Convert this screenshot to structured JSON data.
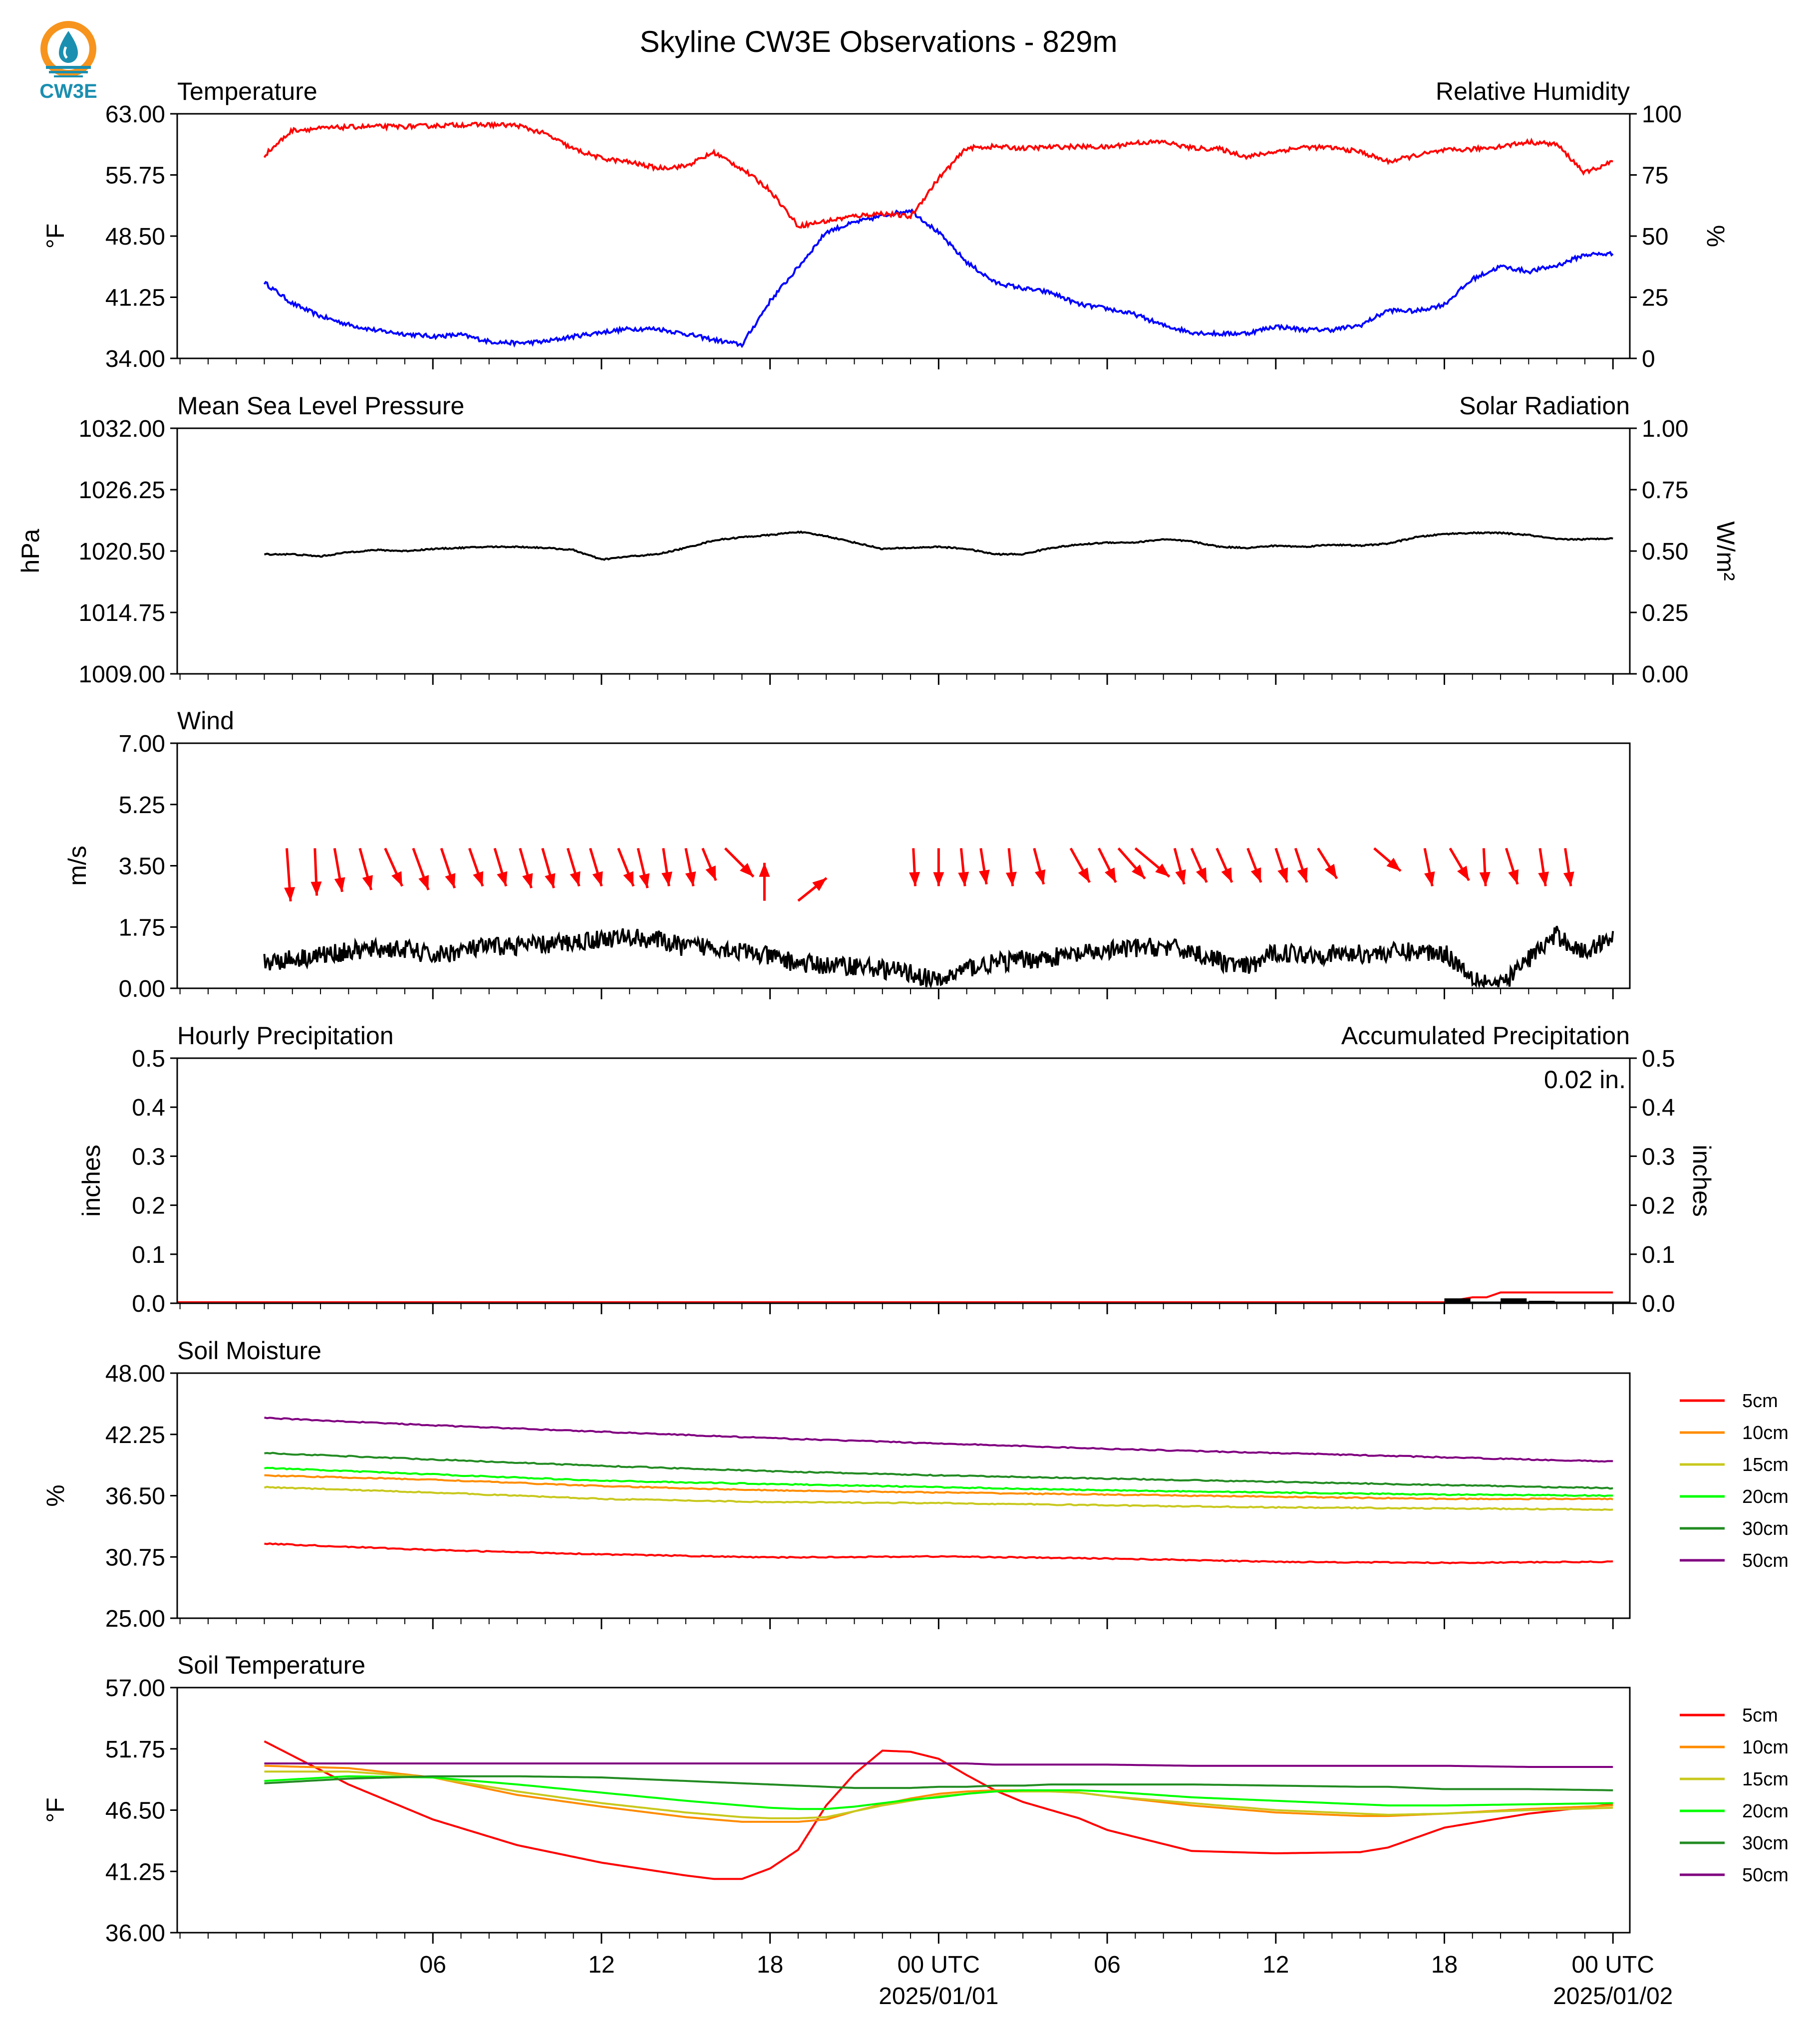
{
  "title": "Skyline CW3E Observations - 829m",
  "logo": {
    "text": "CW3E",
    "colors": {
      "orange": "#f7941d",
      "teal": "#1b8fb0"
    }
  },
  "x_axis": {
    "tick_labels": [
      "06",
      "12",
      "18",
      "00 UTC",
      "06",
      "12",
      "18",
      "00 UTC"
    ],
    "date_labels": [
      {
        "after_tick": 3,
        "text": "2025/01/01"
      },
      {
        "after_tick": 7,
        "text": "2025/01/02"
      }
    ]
  },
  "colors": {
    "temperature": "#0000ff",
    "humidity": "#ff0000",
    "pressure": "#000000",
    "solar": "#008000",
    "wind_speed": "#000000",
    "wind_arrow": "#ff0000",
    "accumulated": "#ff0000",
    "hourly": "#000000",
    "5cm": "#ff0000",
    "10cm": "#ff8c00",
    "15cm": "#c8c81e",
    "20cm": "#00ff00",
    "30cm": "#228b22",
    "50cm": "#800080"
  },
  "chart_data": [
    {
      "id": "temp_rh",
      "type": "line",
      "title_left": "Temperature",
      "title_right": "Relative Humidity",
      "ylabel": "°F",
      "ylabel_right": "%",
      "ylim": [
        34,
        63
      ],
      "yticks": [
        "63.00",
        "55.75",
        "48.50",
        "41.25",
        "34.00"
      ],
      "ylim_right": [
        0,
        100
      ],
      "yticks_right": [
        "100",
        "75",
        "50",
        "25",
        "0"
      ],
      "hours": [
        0,
        1,
        2,
        3,
        4,
        5,
        6,
        7,
        8,
        9,
        10,
        11,
        12,
        13,
        14,
        15,
        16,
        17,
        18,
        19,
        20,
        21,
        22,
        23,
        24,
        25,
        26,
        27,
        28,
        29,
        30,
        31,
        32,
        33,
        34,
        35,
        36,
        37,
        38,
        39,
        40,
        41,
        42,
        43,
        44,
        45,
        46,
        47,
        48
      ],
      "series": [
        {
          "name": "Temperature",
          "axis": "left",
          "values": [
            43.0,
            40.5,
            39.0,
            38.0,
            37.3,
            36.9,
            36.6,
            36.8,
            36.0,
            35.8,
            36.0,
            36.6,
            37.1,
            37.5,
            37.5,
            36.9,
            36.2,
            35.6,
            40.8,
            44.8,
            49.0,
            50.1,
            50.9,
            51.6,
            48.9,
            45.4,
            43.0,
            42.3,
            41.8,
            40.4,
            39.9,
            39.2,
            37.9,
            37.1,
            36.9,
            37.0,
            37.8,
            37.4,
            37.4,
            37.9,
            39.7,
            39.6,
            40.4,
            43.4,
            44.9,
            44.3,
            45.0,
            46.3,
            46.4
          ]
        },
        {
          "name": "Relative Humidity",
          "axis": "right",
          "values": [
            83.0,
            93.3,
            94.0,
            94.6,
            94.8,
            94.8,
            95.1,
            95.5,
            95.5,
            95.3,
            91.8,
            85.6,
            81.8,
            80.2,
            77.8,
            78.6,
            84.2,
            77.5,
            68.8,
            54.1,
            56.1,
            58.2,
            59.3,
            57.9,
            73.6,
            86.0,
            86.6,
            85.9,
            86.4,
            86.6,
            86.3,
            88.2,
            88.5,
            86.0,
            85.6,
            82.4,
            84.6,
            86.4,
            86.1,
            84.5,
            80.4,
            83.0,
            85.0,
            85.5,
            86.7,
            88.5,
            87.5,
            75.8,
            80.5
          ]
        }
      ]
    },
    {
      "id": "pressure",
      "type": "line",
      "title_left": "Mean Sea Level Pressure",
      "title_right": "Solar Radiation",
      "ylabel": "hPa",
      "ylabel_right": "W/m²",
      "ylim": [
        1009,
        1032
      ],
      "yticks": [
        "1032.00",
        "1026.25",
        "1020.50",
        "1014.75",
        "1009.00"
      ],
      "ylim_right": [
        0,
        1
      ],
      "yticks_right": [
        "1.00",
        "0.75",
        "0.50",
        "0.25",
        "0.00"
      ],
      "hours": [
        0,
        1,
        2,
        3,
        4,
        5,
        6,
        7,
        8,
        9,
        10,
        11,
        12,
        13,
        14,
        15,
        16,
        17,
        18,
        19,
        20,
        21,
        22,
        23,
        24,
        25,
        26,
        27,
        28,
        29,
        30,
        31,
        32,
        33,
        34,
        35,
        36,
        37,
        38,
        39,
        40,
        41,
        42,
        43,
        44,
        45,
        46,
        47,
        48
      ],
      "series": [
        {
          "name": "Mean Sea Level Pressure",
          "axis": "left",
          "values": [
            1020.2,
            1020.2,
            1020.0,
            1020.4,
            1020.6,
            1020.5,
            1020.7,
            1020.8,
            1020.9,
            1020.9,
            1020.8,
            1020.6,
            1019.7,
            1020.0,
            1020.2,
            1020.8,
            1021.5,
            1021.8,
            1022.0,
            1022.3,
            1021.9,
            1021.3,
            1020.7,
            1020.8,
            1020.9,
            1020.7,
            1020.2,
            1020.2,
            1020.8,
            1021.1,
            1021.3,
            1021.3,
            1021.6,
            1021.4,
            1020.9,
            1020.8,
            1021.0,
            1020.9,
            1021.1,
            1021.0,
            1021.2,
            1021.8,
            1022.1,
            1022.2,
            1022.2,
            1022.0,
            1021.6,
            1021.6,
            1021.7
          ]
        },
        {
          "name": "Solar Radiation",
          "axis": "right",
          "values": []
        }
      ]
    },
    {
      "id": "wind",
      "type": "line",
      "title_left": "Wind",
      "ylabel": "m/s",
      "ylim": [
        0,
        7
      ],
      "yticks": [
        "7.00",
        "5.25",
        "3.50",
        "1.75",
        "0.00"
      ],
      "hours": [
        0,
        1,
        2,
        3,
        4,
        5,
        6,
        7,
        8,
        9,
        10,
        11,
        12,
        13,
        14,
        15,
        16,
        17,
        18,
        19,
        20,
        21,
        22,
        23,
        24,
        25,
        26,
        27,
        28,
        29,
        30,
        31,
        32,
        33,
        34,
        35,
        36,
        37,
        38,
        39,
        40,
        41,
        42,
        43,
        44,
        45,
        46,
        47,
        48
      ],
      "series": [
        {
          "name": "Wind speed",
          "values": [
            0.75,
            0.84,
            0.95,
            1.05,
            1.12,
            1.12,
            0.92,
            1.08,
            1.18,
            1.22,
            1.24,
            1.32,
            1.41,
            1.46,
            1.38,
            1.17,
            1.21,
            1.05,
            0.9,
            0.72,
            0.65,
            0.65,
            0.55,
            0.44,
            0.18,
            0.58,
            0.72,
            0.82,
            0.88,
            0.96,
            1.06,
            1.15,
            1.18,
            1.05,
            0.78,
            0.58,
            1.03,
            0.98,
            0.98,
            0.98,
            1.02,
            1.05,
            1.02,
            0.35,
            0.07,
            0.85,
            1.52,
            1.0,
            1.55
          ]
        }
      ],
      "arrows": [
        {
          "hour": 0.8,
          "u": 0.2,
          "v": -2.8
        },
        {
          "hour": 1.8,
          "u": 0.1,
          "v": -2.5
        },
        {
          "hour": 2.5,
          "u": 0.4,
          "v": -2.3
        },
        {
          "hour": 3.4,
          "u": 0.6,
          "v": -2.2
        },
        {
          "hour": 4.3,
          "u": 0.9,
          "v": -2.0
        },
        {
          "hour": 5.3,
          "u": 0.8,
          "v": -2.2
        },
        {
          "hour": 6.3,
          "u": 0.7,
          "v": -2.1
        },
        {
          "hour": 7.3,
          "u": 0.7,
          "v": -2.0
        },
        {
          "hour": 8.2,
          "u": 0.6,
          "v": -2.0
        },
        {
          "hour": 9.1,
          "u": 0.6,
          "v": -2.1
        },
        {
          "hour": 9.9,
          "u": 0.6,
          "v": -2.1
        },
        {
          "hour": 10.8,
          "u": 0.6,
          "v": -2.0
        },
        {
          "hour": 11.6,
          "u": 0.6,
          "v": -2.0
        },
        {
          "hour": 12.6,
          "u": 0.8,
          "v": -2.0
        },
        {
          "hour": 13.3,
          "u": 0.5,
          "v": -2.1
        },
        {
          "hour": 14.2,
          "u": 0.3,
          "v": -2.0
        },
        {
          "hour": 15.0,
          "u": 0.4,
          "v": -2.0
        },
        {
          "hour": 15.6,
          "u": 0.7,
          "v": -1.7
        },
        {
          "hour": 16.4,
          "u": 1.5,
          "v": -1.5
        },
        {
          "hour": 17.8,
          "u": 0.0,
          "v": 2.0
        },
        {
          "hour": 19.0,
          "u": 1.5,
          "v": 1.2
        },
        {
          "hour": 23.1,
          "u": 0.1,
          "v": -2.0
        },
        {
          "hour": 24.0,
          "u": 0.0,
          "v": -2.0
        },
        {
          "hour": 24.8,
          "u": 0.2,
          "v": -2.0
        },
        {
          "hour": 25.5,
          "u": 0.3,
          "v": -1.9
        },
        {
          "hour": 26.5,
          "u": 0.2,
          "v": -2.0
        },
        {
          "hour": 27.4,
          "u": 0.5,
          "v": -1.9
        },
        {
          "hour": 28.7,
          "u": 1.0,
          "v": -1.8
        },
        {
          "hour": 29.7,
          "u": 0.9,
          "v": -1.8
        },
        {
          "hour": 30.4,
          "u": 1.4,
          "v": -1.6
        },
        {
          "hour": 31.0,
          "u": 1.8,
          "v": -1.5
        },
        {
          "hour": 32.4,
          "u": 0.5,
          "v": -1.9
        },
        {
          "hour": 33.0,
          "u": 0.8,
          "v": -1.8
        },
        {
          "hour": 33.9,
          "u": 0.8,
          "v": -1.8
        },
        {
          "hour": 35.0,
          "u": 0.7,
          "v": -1.8
        },
        {
          "hour": 36.0,
          "u": 0.6,
          "v": -1.8
        },
        {
          "hour": 36.7,
          "u": 0.6,
          "v": -1.8
        },
        {
          "hour": 37.5,
          "u": 1.0,
          "v": -1.6
        },
        {
          "hour": 39.5,
          "u": 1.4,
          "v": -1.2
        },
        {
          "hour": 41.3,
          "u": 0.4,
          "v": -2.0
        },
        {
          "hour": 42.2,
          "u": 1.0,
          "v": -1.7
        },
        {
          "hour": 43.4,
          "u": 0.1,
          "v": -2.0
        },
        {
          "hour": 44.2,
          "u": 0.6,
          "v": -1.9
        },
        {
          "hour": 45.4,
          "u": 0.3,
          "v": -2.0
        },
        {
          "hour": 46.3,
          "u": 0.3,
          "v": -2.0
        }
      ]
    },
    {
      "id": "precip",
      "type": "line",
      "title_left": "Hourly Precipitation",
      "title_right": "Accumulated Precipitation",
      "annotation": "0.02 in.",
      "ylabel": "inches",
      "ylabel_right": "inches",
      "ylim": [
        0,
        0.5
      ],
      "yticks": [
        "0.5",
        "0.4",
        "0.3",
        "0.2",
        "0.1",
        "0.0"
      ],
      "ylim_right": [
        0,
        0.5
      ],
      "yticks_right": [
        "0.5",
        "0.4",
        "0.3",
        "0.2",
        "0.1",
        "0.0"
      ],
      "series": [
        {
          "name": "Accumulated Precipitation",
          "axis": "right",
          "hours": [
            0,
            42.0,
            43.0,
            43.5,
            44.0,
            44.5,
            48
          ],
          "values": [
            0.0,
            0.0,
            0.01,
            0.01,
            0.02,
            0.02,
            0.02
          ]
        },
        {
          "name": "Hourly Precipitation",
          "axis": "left",
          "hours": [
            42.0,
            44.0,
            45.0
          ],
          "values": [
            0.01,
            0.01,
            0.005
          ]
        }
      ]
    },
    {
      "id": "soil_moisture",
      "type": "line",
      "title_left": "Soil Moisture",
      "ylabel": "%",
      "ylim": [
        25,
        48
      ],
      "yticks": [
        "48.00",
        "42.25",
        "36.50",
        "30.75",
        "25.00"
      ],
      "hours": [
        0,
        6,
        12,
        18,
        24,
        30,
        36,
        42,
        48
      ],
      "legend": [
        "5cm",
        "10cm",
        "15cm",
        "20cm",
        "30cm",
        "50cm"
      ],
      "series": [
        {
          "name": "5cm",
          "values": [
            32.0,
            31.4,
            31.0,
            30.7,
            30.8,
            30.6,
            30.3,
            30.2,
            30.3
          ]
        },
        {
          "name": "10cm",
          "values": [
            38.4,
            38.0,
            37.4,
            37.0,
            36.8,
            36.6,
            36.4,
            36.2,
            36.2
          ]
        },
        {
          "name": "15cm",
          "values": [
            37.3,
            36.8,
            36.2,
            35.9,
            35.8,
            35.6,
            35.4,
            35.3,
            35.2
          ]
        },
        {
          "name": "20cm",
          "values": [
            39.1,
            38.5,
            37.9,
            37.6,
            37.3,
            37.0,
            36.8,
            36.6,
            36.5
          ]
        },
        {
          "name": "30cm",
          "values": [
            40.5,
            39.9,
            39.3,
            38.8,
            38.4,
            38.1,
            37.8,
            37.5,
            37.2
          ]
        },
        {
          "name": "50cm",
          "values": [
            43.8,
            43.1,
            42.5,
            41.9,
            41.4,
            40.9,
            40.5,
            40.1,
            39.7
          ]
        }
      ]
    },
    {
      "id": "soil_temperature",
      "type": "line",
      "title_left": "Soil Temperature",
      "ylabel": "°F",
      "ylim": [
        36,
        57
      ],
      "yticks": [
        "57.00",
        "51.75",
        "46.50",
        "41.25",
        "36.00"
      ],
      "hours": [
        0,
        3,
        6,
        9,
        12,
        15,
        16,
        17,
        18,
        19,
        20,
        21,
        22,
        23,
        24,
        25,
        26,
        27,
        28,
        29,
        30,
        33,
        36,
        39,
        40,
        42,
        45,
        48
      ],
      "legend": [
        "5cm",
        "10cm",
        "15cm",
        "20cm",
        "30cm",
        "50cm"
      ],
      "series": [
        {
          "name": "5cm",
          "values": [
            52.4,
            48.7,
            45.7,
            43.5,
            42.0,
            40.9,
            40.6,
            40.6,
            41.5,
            43.1,
            46.9,
            49.6,
            51.6,
            51.5,
            50.9,
            49.5,
            48.2,
            47.2,
            46.5,
            45.8,
            44.8,
            43.0,
            42.8,
            42.9,
            43.3,
            45.0,
            46.2,
            47.0
          ]
        },
        {
          "name": "10cm",
          "values": [
            50.3,
            50.1,
            49.3,
            47.8,
            46.8,
            45.9,
            45.7,
            45.5,
            45.5,
            45.5,
            45.7,
            46.4,
            47.0,
            47.5,
            47.9,
            48.1,
            48.2,
            48.2,
            48.1,
            48.0,
            47.7,
            46.9,
            46.3,
            46.0,
            46.0,
            46.2,
            46.6,
            46.9
          ]
        },
        {
          "name": "15cm",
          "values": [
            49.8,
            49.8,
            49.3,
            48.1,
            47.1,
            46.3,
            46.1,
            45.9,
            45.8,
            45.8,
            45.9,
            46.4,
            46.9,
            47.3,
            47.7,
            47.9,
            48.1,
            48.1,
            48.1,
            48.0,
            47.7,
            47.1,
            46.5,
            46.2,
            46.1,
            46.2,
            46.5,
            46.7
          ]
        },
        {
          "name": "20cm",
          "values": [
            49.0,
            49.4,
            49.3,
            48.7,
            48.0,
            47.3,
            47.1,
            46.9,
            46.7,
            46.6,
            46.6,
            46.8,
            47.1,
            47.4,
            47.6,
            47.9,
            48.1,
            48.2,
            48.2,
            48.2,
            48.1,
            47.6,
            47.3,
            47.0,
            46.9,
            46.9,
            47.0,
            47.1
          ]
        },
        {
          "name": "30cm",
          "values": [
            48.8,
            49.2,
            49.4,
            49.4,
            49.3,
            49.0,
            48.9,
            48.8,
            48.7,
            48.6,
            48.5,
            48.4,
            48.4,
            48.4,
            48.5,
            48.5,
            48.6,
            48.6,
            48.7,
            48.7,
            48.7,
            48.7,
            48.6,
            48.5,
            48.5,
            48.3,
            48.3,
            48.2
          ]
        },
        {
          "name": "50cm",
          "values": [
            50.5,
            50.5,
            50.5,
            50.5,
            50.5,
            50.5,
            50.5,
            50.5,
            50.5,
            50.5,
            50.5,
            50.5,
            50.5,
            50.5,
            50.5,
            50.5,
            50.4,
            50.4,
            50.4,
            50.4,
            50.4,
            50.3,
            50.3,
            50.3,
            50.3,
            50.3,
            50.2,
            50.2
          ]
        }
      ]
    }
  ]
}
